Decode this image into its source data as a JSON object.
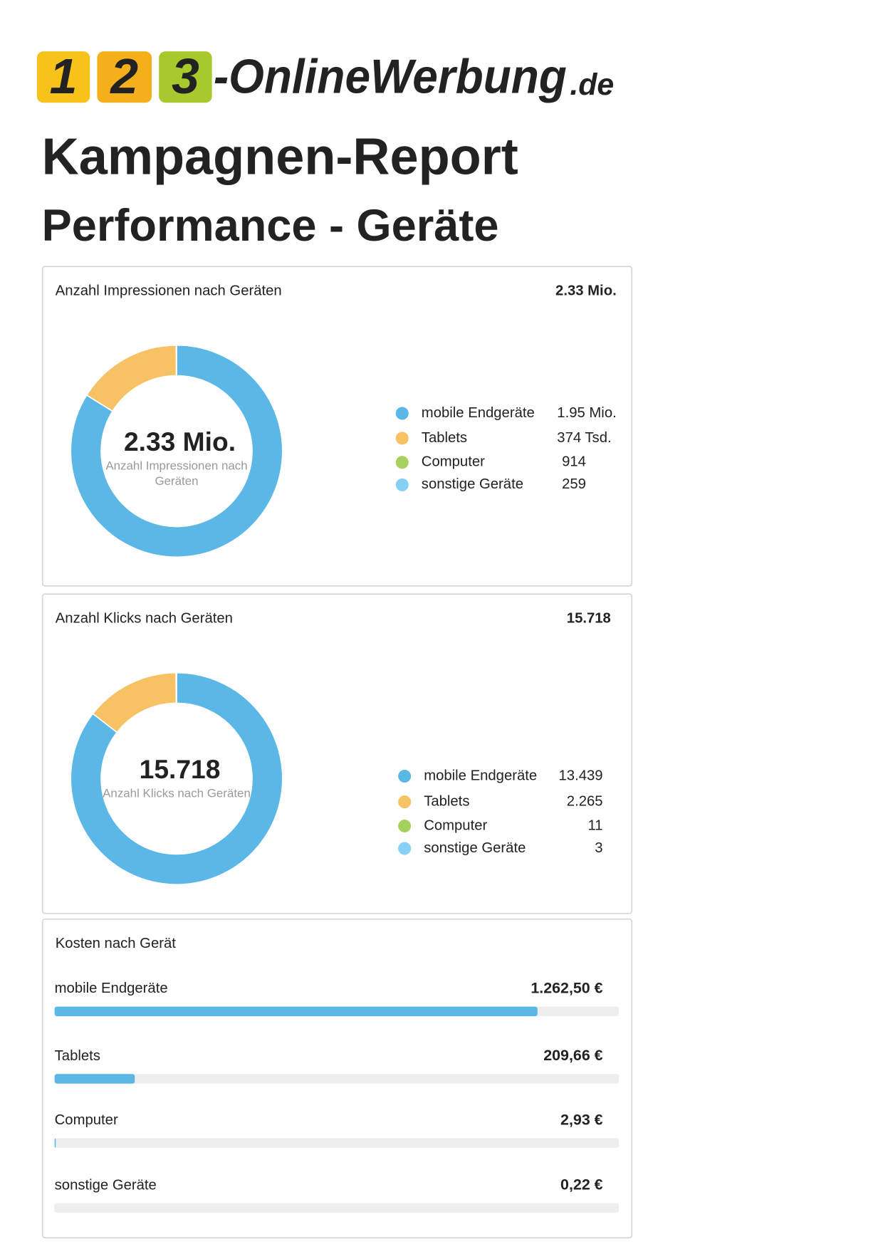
{
  "logo": {
    "digits": [
      "1",
      "2",
      "3"
    ],
    "text": "-OnlineWerbung",
    "tld": ".de"
  },
  "title": "Kampagnen-Report",
  "subtitle": "Performance - Geräte",
  "chart_data": [
    {
      "type": "donut",
      "title": "Anzahl Impressionen nach Geräten",
      "total": {
        "value": 2330000,
        "label": "2.33 Mio."
      },
      "center_label": "Anzahl Impressionen nach Geräten",
      "categories": [
        "mobile Endgeräte",
        "Tablets",
        "Computer",
        "sonstige Geräte"
      ],
      "values": [
        1950000,
        374000,
        914,
        259
      ],
      "value_labels": [
        "1.95 Mio.",
        "374 Tsd.",
        "914",
        "259"
      ],
      "colors": [
        "#5ab7e6",
        "#f7c263",
        "#a6d15c",
        "#86d0f5"
      ]
    },
    {
      "type": "donut",
      "title": "Anzahl Klicks nach Geräten",
      "total": {
        "value": 15718,
        "label": "15.718"
      },
      "center_label": "Anzahl Klicks nach Geräten",
      "categories": [
        "mobile Endgeräte",
        "Tablets",
        "Computer",
        "sonstige Geräte"
      ],
      "values": [
        13439,
        2265,
        11,
        3
      ],
      "value_labels": [
        "13.439",
        "2.265",
        "11",
        "3"
      ],
      "colors": [
        "#5ab7e6",
        "#f7c263",
        "#a6d15c",
        "#86d0f5"
      ]
    },
    {
      "type": "hbar",
      "title": "Kosten nach Gerät",
      "categories": [
        "mobile Endgeräte",
        "Tablets",
        "Computer",
        "sonstige Geräte"
      ],
      "values": [
        1262.5,
        209.66,
        2.93,
        0.22
      ],
      "value_labels": [
        "1.262,50 €",
        "209,66 €",
        "2,93 €",
        "0,22 €"
      ],
      "xlim": [
        0,
        1475.31
      ],
      "color": "#5ab7e6",
      "track_color": "#eeeeee"
    }
  ]
}
